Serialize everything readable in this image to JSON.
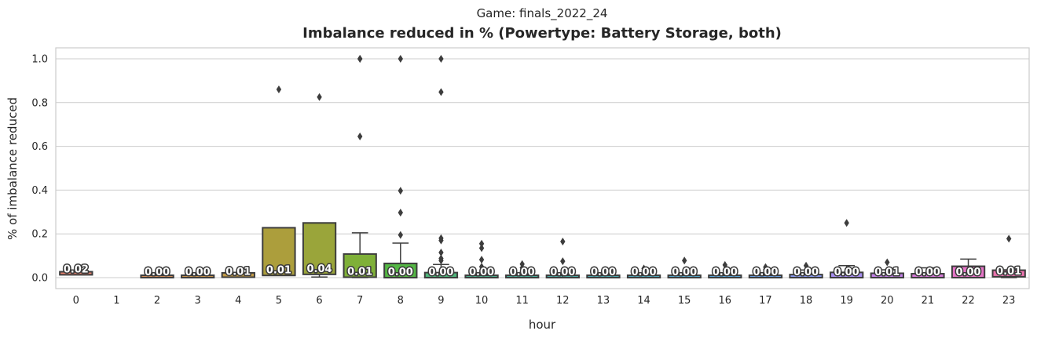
{
  "chart_data": {
    "type": "box",
    "suptitle": "Game: finals_2022_24",
    "title": "Imbalance reduced in % (Powertype: Battery Storage, both)",
    "xlabel": "hour",
    "ylabel": "% of imbalance reduced",
    "ylim": [
      -0.05,
      1.05
    ],
    "yticks": [
      "0.0",
      "0.2",
      "0.4",
      "0.6",
      "0.8",
      "1.0"
    ],
    "grid": "horizontal",
    "colors": {
      "box_edge": "#3d3d3d",
      "grid": "#cccccc",
      "frame": "#cccccc"
    },
    "boxes": [
      {
        "hour": "0",
        "q1": 0.013,
        "q3": 0.027,
        "whislo": 0.013,
        "whishi": 0.027,
        "fliers": [],
        "label": "0.02",
        "color": "#e5806c"
      },
      {
        "hour": "1",
        "q1": null,
        "q3": null,
        "whislo": null,
        "whishi": null,
        "fliers": [],
        "label": "",
        "color": "#e0836c"
      },
      {
        "hour": "2",
        "q1": 0.0,
        "q3": 0.006,
        "whislo": 0.0,
        "whishi": 0.006,
        "fliers": [],
        "label": "0.00",
        "color": "#d68f5a"
      },
      {
        "hour": "3",
        "q1": 0.0,
        "q3": 0.008,
        "whislo": 0.0,
        "whishi": 0.008,
        "fliers": [],
        "label": "0.00",
        "color": "#cd964e"
      },
      {
        "hour": "4",
        "q1": 0.002,
        "q3": 0.022,
        "whislo": 0.002,
        "whishi": 0.022,
        "fliers": [],
        "label": "0.01",
        "color": "#c29b47"
      },
      {
        "hour": "5",
        "q1": 0.01,
        "q3": 0.228,
        "whislo": 0.01,
        "whishi": 0.228,
        "fliers": [
          0.86
        ],
        "label": "0.01",
        "color": "#ac9e3c"
      },
      {
        "hour": "6",
        "q1": 0.015,
        "q3": 0.25,
        "whislo": 0.003,
        "whishi": 0.25,
        "fliers": [
          0.825
        ],
        "label": "0.04",
        "color": "#9aa53a"
      },
      {
        "hour": "7",
        "q1": 0.002,
        "q3": 0.108,
        "whislo": 0.0,
        "whishi": 0.205,
        "fliers": [
          0.645,
          1.0,
          1.0
        ],
        "label": "0.01",
        "color": "#7fb038"
      },
      {
        "hour": "8",
        "q1": 0.0,
        "q3": 0.065,
        "whislo": 0.0,
        "whishi": 0.158,
        "fliers": [
          0.195,
          0.297,
          0.397,
          1.0
        ],
        "label": "0.00",
        "color": "#54b744"
      },
      {
        "hour": "9",
        "q1": 0.0,
        "q3": 0.023,
        "whislo": 0.0,
        "whishi": 0.06,
        "fliers": [
          0.078,
          0.088,
          0.115,
          0.17,
          0.18,
          0.848,
          1.0
        ],
        "label": "0.00",
        "color": "#4eb57a"
      },
      {
        "hour": "10",
        "q1": 0.0,
        "q3": 0.01,
        "whislo": 0.0,
        "whishi": 0.022,
        "fliers": [
          0.03,
          0.05,
          0.082,
          0.135,
          0.155
        ],
        "label": "0.00",
        "color": "#4db28f"
      },
      {
        "hour": "11",
        "q1": 0.0,
        "q3": 0.004,
        "whislo": 0.0,
        "whishi": 0.012,
        "fliers": [
          0.028,
          0.045,
          0.062
        ],
        "label": "0.00",
        "color": "#4bb19e"
      },
      {
        "hour": "12",
        "q1": 0.0,
        "q3": 0.004,
        "whislo": 0.0,
        "whishi": 0.01,
        "fliers": [
          0.02,
          0.075,
          0.165
        ],
        "label": "0.00",
        "color": "#4bb0a9"
      },
      {
        "hour": "13",
        "q1": 0.0,
        "q3": 0.003,
        "whislo": 0.0,
        "whishi": 0.003,
        "fliers": [],
        "label": "0.00",
        "color": "#4cafb6"
      },
      {
        "hour": "14",
        "q1": 0.0,
        "q3": 0.003,
        "whislo": 0.0,
        "whishi": 0.008,
        "fliers": [
          0.042
        ],
        "label": "0.00",
        "color": "#4faec2"
      },
      {
        "hour": "15",
        "q1": 0.0,
        "q3": 0.003,
        "whislo": 0.0,
        "whishi": 0.008,
        "fliers": [
          0.078
        ],
        "label": "0.00",
        "color": "#54acd1"
      },
      {
        "hour": "16",
        "q1": 0.0,
        "q3": 0.006,
        "whislo": 0.0,
        "whishi": 0.015,
        "fliers": [
          0.035,
          0.058
        ],
        "label": "0.00",
        "color": "#5aa9e0"
      },
      {
        "hour": "17",
        "q1": 0.0,
        "q3": 0.01,
        "whislo": 0.0,
        "whishi": 0.022,
        "fliers": [
          0.03,
          0.038,
          0.048
        ],
        "label": "0.00",
        "color": "#6aa3ea"
      },
      {
        "hour": "18",
        "q1": 0.0,
        "q3": 0.014,
        "whislo": 0.0,
        "whishi": 0.035,
        "fliers": [
          0.055
        ],
        "label": "0.00",
        "color": "#8a9af0"
      },
      {
        "hour": "19",
        "q1": 0.0,
        "q3": 0.024,
        "whislo": 0.0,
        "whishi": 0.055,
        "fliers": [
          0.25
        ],
        "label": "0.00",
        "color": "#a78ef0"
      },
      {
        "hour": "20",
        "q1": 0.0,
        "q3": 0.02,
        "whislo": 0.0,
        "whishi": 0.036,
        "fliers": [
          0.07
        ],
        "label": "0.01",
        "color": "#c381e8"
      },
      {
        "hour": "21",
        "q1": 0.0,
        "q3": 0.018,
        "whislo": 0.0,
        "whishi": 0.045,
        "fliers": [],
        "label": "0.00",
        "color": "#d678d8"
      },
      {
        "hour": "22",
        "q1": 0.0,
        "q3": 0.052,
        "whislo": 0.0,
        "whishi": 0.085,
        "fliers": [],
        "label": "0.00",
        "color": "#e474c6"
      },
      {
        "hour": "23",
        "q1": 0.004,
        "q3": 0.034,
        "whislo": 0.0,
        "whishi": 0.036,
        "fliers": [
          0.178
        ],
        "label": "0.01",
        "color": "#ea73ad"
      }
    ]
  }
}
